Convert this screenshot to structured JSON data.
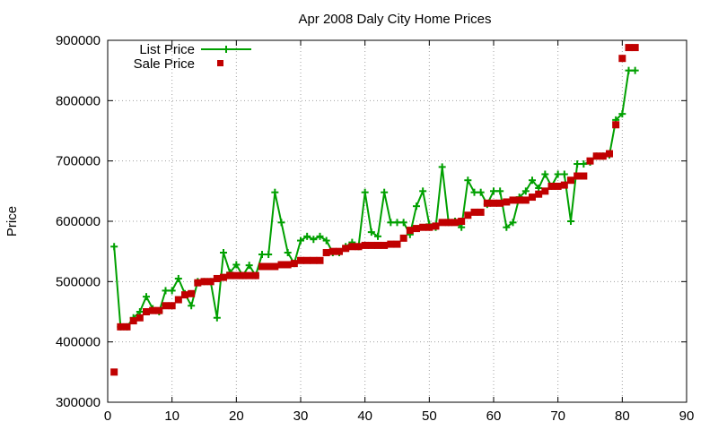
{
  "chart_data": {
    "type": "line",
    "title": "Apr 2008 Daly City Home Prices",
    "xlabel": "",
    "ylabel": "Price",
    "xlim": [
      0,
      90
    ],
    "ylim": [
      300000,
      900000
    ],
    "xticks": [
      0,
      10,
      20,
      30,
      40,
      50,
      60,
      70,
      80,
      90
    ],
    "yticks": [
      300000,
      400000,
      500000,
      600000,
      700000,
      800000,
      900000
    ],
    "grid": true,
    "legend_position": "top-left",
    "series": [
      {
        "name": "List Price",
        "style": "line+cross",
        "color": "#00a000",
        "x": [
          1,
          2,
          3,
          4,
          5,
          6,
          7,
          8,
          9,
          10,
          11,
          12,
          13,
          14,
          15,
          16,
          17,
          18,
          19,
          20,
          21,
          22,
          23,
          24,
          25,
          26,
          27,
          28,
          29,
          30,
          31,
          32,
          33,
          34,
          35,
          36,
          37,
          38,
          39,
          40,
          41,
          42,
          43,
          44,
          45,
          46,
          47,
          48,
          49,
          50,
          51,
          52,
          53,
          54,
          55,
          56,
          57,
          58,
          59,
          60,
          61,
          62,
          63,
          64,
          65,
          66,
          67,
          68,
          69,
          70,
          71,
          72,
          73,
          74,
          75,
          76,
          77,
          78,
          79,
          80,
          81,
          82
        ],
        "values": [
          558000,
          425000,
          425000,
          440000,
          450000,
          475000,
          455000,
          450000,
          485000,
          485000,
          505000,
          480000,
          460000,
          500000,
          500000,
          500000,
          440000,
          548000,
          515000,
          528000,
          510000,
          527000,
          510000,
          545000,
          545000,
          648000,
          598000,
          548000,
          530000,
          568000,
          575000,
          570000,
          575000,
          568000,
          548000,
          548000,
          558000,
          565000,
          558000,
          648000,
          582000,
          575000,
          648000,
          598000,
          598000,
          598000,
          578000,
          625000,
          650000,
          595000,
          590000,
          690000,
          598000,
          600000,
          590000,
          668000,
          648000,
          648000,
          628000,
          650000,
          650000,
          590000,
          598000,
          640000,
          650000,
          668000,
          655000,
          678000,
          658000,
          678000,
          678000,
          600000,
          695000,
          695000,
          698000,
          708000,
          708000,
          710000,
          768000,
          778000,
          850000,
          850000
        ]
      },
      {
        "name": "Sale Price",
        "style": "square-points",
        "color": "#c00000",
        "x": [
          1,
          2,
          3,
          4,
          5,
          6,
          7,
          8,
          9,
          10,
          11,
          12,
          13,
          14,
          15,
          16,
          17,
          18,
          19,
          20,
          21,
          22,
          23,
          24,
          25,
          26,
          27,
          28,
          29,
          30,
          31,
          32,
          33,
          34,
          35,
          36,
          37,
          38,
          39,
          40,
          41,
          42,
          43,
          44,
          45,
          46,
          47,
          48,
          49,
          50,
          51,
          52,
          53,
          54,
          55,
          56,
          57,
          58,
          59,
          60,
          61,
          62,
          63,
          64,
          65,
          66,
          67,
          68,
          69,
          70,
          71,
          72,
          73,
          74,
          75,
          76,
          77,
          78,
          79,
          80,
          81,
          82
        ],
        "values": [
          350000,
          425000,
          425000,
          435000,
          440000,
          450000,
          452000,
          452000,
          460000,
          460000,
          470000,
          478000,
          480000,
          498000,
          500000,
          500000,
          505000,
          507000,
          510000,
          510000,
          510000,
          510000,
          510000,
          525000,
          525000,
          525000,
          528000,
          528000,
          530000,
          535000,
          535000,
          535000,
          535000,
          548000,
          550000,
          550000,
          555000,
          558000,
          558000,
          560000,
          560000,
          560000,
          560000,
          562000,
          562000,
          572000,
          585000,
          588000,
          590000,
          590000,
          592000,
          598000,
          598000,
          598000,
          600000,
          610000,
          615000,
          615000,
          630000,
          630000,
          630000,
          632000,
          635000,
          635000,
          635000,
          640000,
          645000,
          650000,
          658000,
          658000,
          660000,
          668000,
          675000,
          675000,
          700000,
          708000,
          708000,
          712000,
          760000,
          870000,
          888000,
          888000
        ]
      }
    ]
  }
}
